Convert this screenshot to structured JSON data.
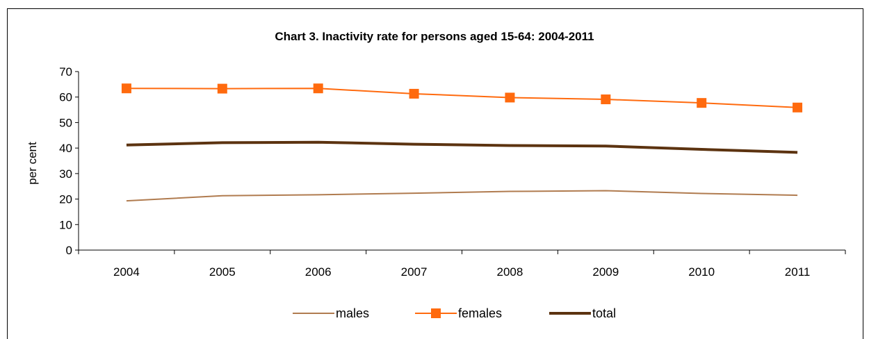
{
  "chart_data": {
    "type": "line",
    "title": "Chart 3. Inactivity rate for persons aged 15-64: 2004-2011",
    "xlabel": "",
    "ylabel": "per cent",
    "categories": [
      "2004",
      "2005",
      "2006",
      "2007",
      "2008",
      "2009",
      "2010",
      "2011"
    ],
    "ylim": [
      0,
      70
    ],
    "yticks": [
      0,
      10,
      20,
      30,
      40,
      50,
      60,
      70
    ],
    "grid": false,
    "legend_position": "bottom",
    "series": [
      {
        "name": "males",
        "color": "#b07b4f",
        "marker": "none",
        "values": [
          19.3,
          21.3,
          21.7,
          22.3,
          23.0,
          23.3,
          22.2,
          21.5
        ]
      },
      {
        "name": "females",
        "color": "#ff6a0e",
        "marker": "square",
        "values": [
          63.4,
          63.3,
          63.4,
          61.3,
          59.8,
          59.1,
          57.7,
          55.9
        ]
      },
      {
        "name": "total",
        "color": "#5c3310",
        "marker": "none",
        "values": [
          41.2,
          42.1,
          42.3,
          41.5,
          41.0,
          40.8,
          39.5,
          38.3
        ]
      }
    ]
  }
}
